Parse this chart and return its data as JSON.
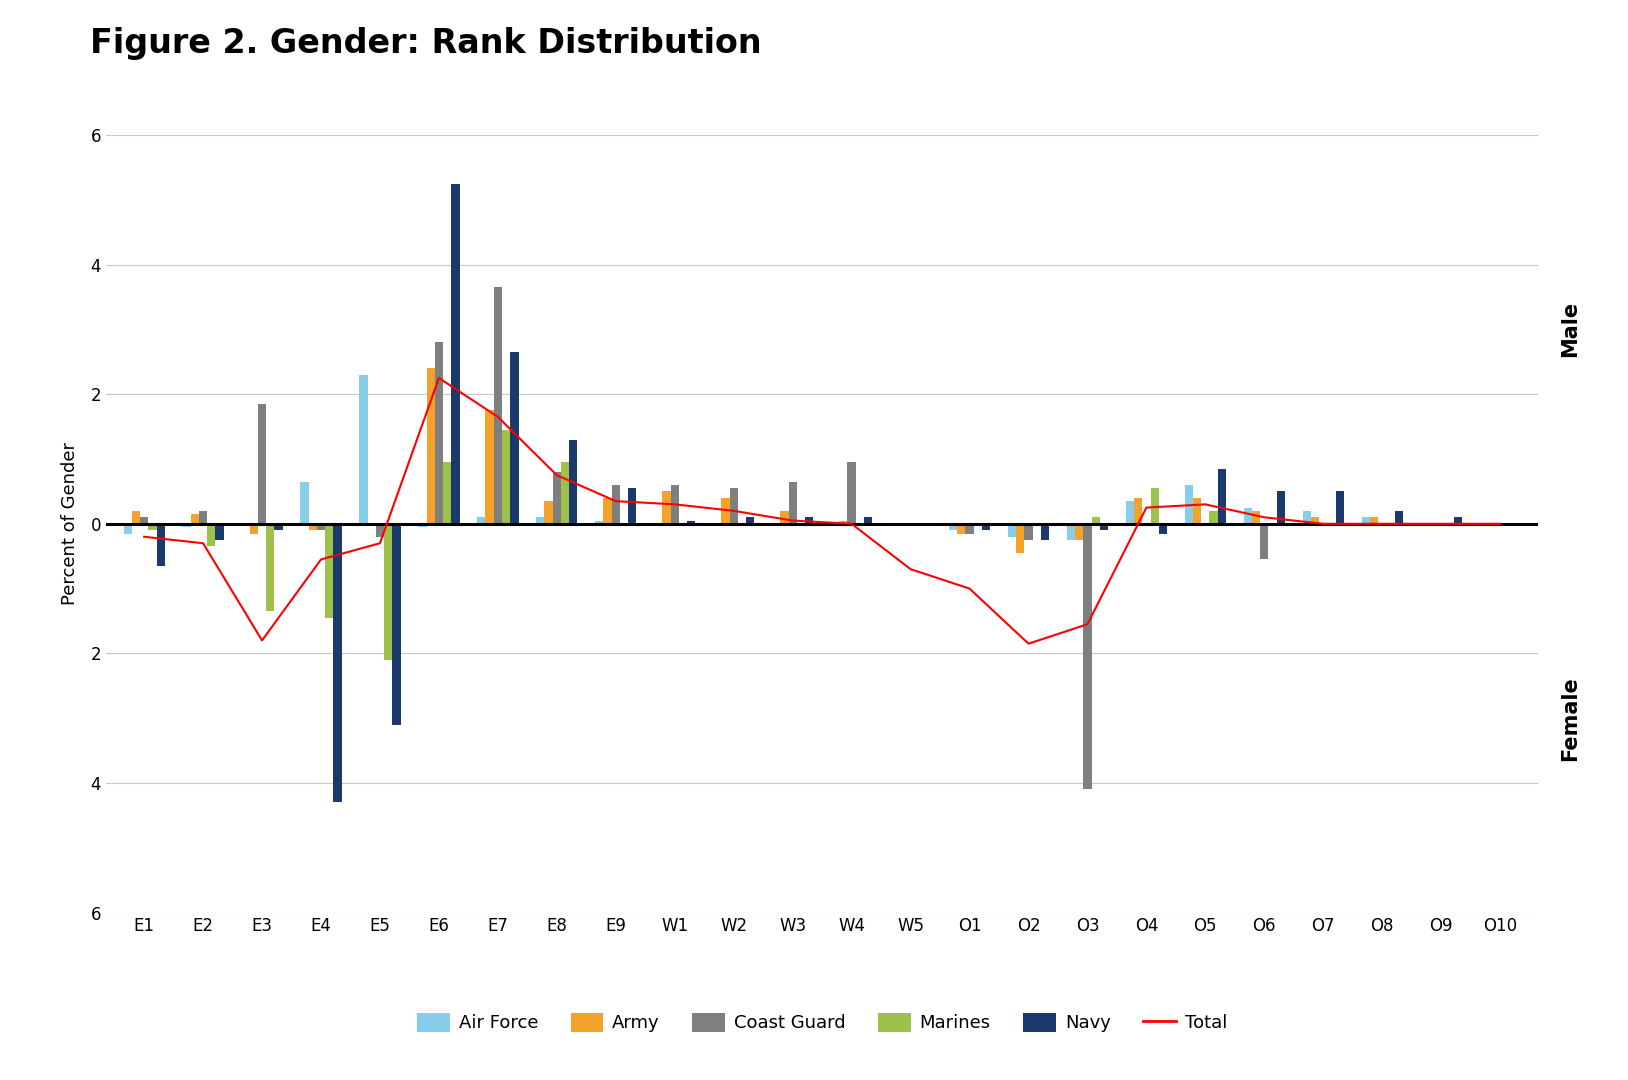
{
  "title": "Figure 2. Gender: Rank Distribution",
  "ylabel": "Percent of Gender",
  "categories": [
    "E1",
    "E2",
    "E3",
    "E4",
    "E5",
    "E6",
    "E7",
    "E8",
    "E9",
    "W1",
    "W2",
    "W3",
    "W4",
    "W5",
    "O1",
    "O2",
    "O3",
    "O4",
    "O5",
    "O6",
    "O7",
    "O8",
    "O9",
    "O10"
  ],
  "ylim": [
    -6,
    6
  ],
  "yticks": [
    -6,
    -4,
    -2,
    0,
    2,
    4,
    6
  ],
  "ytick_labels": [
    "6",
    "4",
    "2",
    "0",
    "2",
    "4",
    "6"
  ],
  "bar_width": 0.14,
  "colors": {
    "Air Force": "#87CEEB",
    "Army": "#F5A22A",
    "Coast Guard": "#7F7F7F",
    "Marines": "#9DC14B",
    "Navy": "#1A3A6B",
    "Total": "#FF0000"
  },
  "series": {
    "Air Force": [
      -0.15,
      -0.05,
      0.0,
      0.65,
      2.3,
      -0.05,
      0.1,
      0.1,
      0.05,
      0.0,
      0.0,
      0.0,
      0.0,
      0.0,
      -0.1,
      -0.2,
      -0.25,
      0.35,
      0.6,
      0.25,
      0.2,
      0.1,
      0.0,
      0.0
    ],
    "Army": [
      0.2,
      0.15,
      -0.15,
      -0.1,
      0.0,
      2.4,
      1.75,
      0.35,
      0.4,
      0.5,
      0.4,
      0.2,
      0.05,
      0.0,
      -0.15,
      -0.45,
      -0.25,
      0.4,
      0.4,
      0.2,
      0.1,
      0.1,
      0.0,
      0.0
    ],
    "Coast Guard": [
      0.1,
      0.2,
      1.85,
      -0.1,
      -0.2,
      2.8,
      3.65,
      0.8,
      0.6,
      0.6,
      0.55,
      0.65,
      0.95,
      0.0,
      -0.15,
      -0.25,
      -4.1,
      0.0,
      0.0,
      -0.55,
      0.0,
      0.0,
      0.0,
      0.0
    ],
    "Marines": [
      -0.1,
      -0.35,
      -1.35,
      -1.45,
      -2.1,
      0.95,
      1.45,
      0.95,
      0.0,
      0.0,
      0.0,
      0.0,
      0.0,
      0.0,
      0.0,
      0.0,
      0.1,
      0.55,
      0.2,
      0.0,
      0.0,
      0.0,
      0.0,
      0.0
    ],
    "Navy": [
      -0.65,
      -0.25,
      -0.1,
      -4.3,
      -3.1,
      5.25,
      2.65,
      1.3,
      0.55,
      0.05,
      0.1,
      0.1,
      0.1,
      0.0,
      -0.1,
      -0.25,
      -0.1,
      -0.15,
      0.85,
      0.5,
      0.5,
      0.2,
      0.1,
      0.0
    ],
    "Total": [
      -0.2,
      -0.3,
      -1.8,
      -0.55,
      -0.3,
      2.25,
      1.65,
      0.75,
      0.35,
      0.3,
      0.2,
      0.05,
      0.0,
      -0.7,
      -1.0,
      -1.85,
      -1.55,
      0.25,
      0.3,
      0.1,
      0.0,
      0.0,
      0.0,
      0.0
    ]
  },
  "background_color": "#FFFFFF",
  "male_label": "Male",
  "female_label": "Female",
  "title_fontsize": 24,
  "axis_fontsize": 13,
  "tick_fontsize": 12,
  "legend_fontsize": 13
}
